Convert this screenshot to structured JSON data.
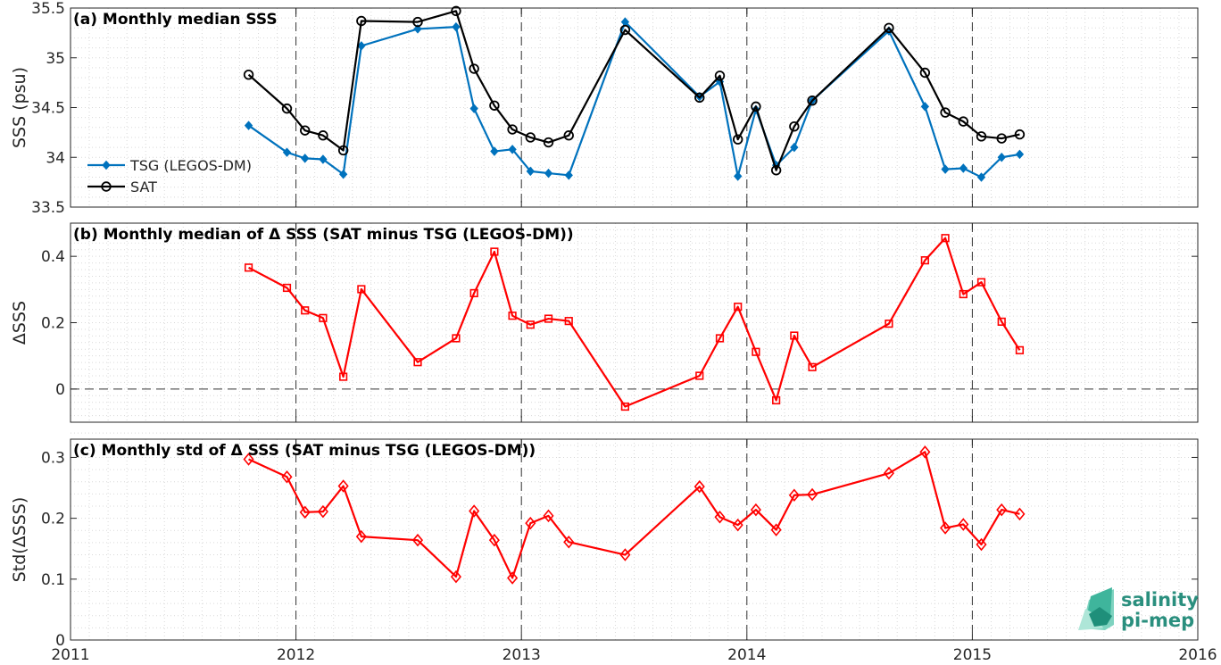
{
  "colors": {
    "tsg": "#0072BD",
    "sat": "#000000",
    "delta": "#FF0000",
    "grid": "#d9d9d9",
    "axis": "#262626",
    "logo": "#2a8f7e"
  },
  "logo": {
    "line1": "salinity",
    "line2": "pi-mep"
  },
  "chart_data": [
    {
      "type": "line",
      "title": "(a) Monthly median SSS",
      "xlabel": "",
      "ylabel": "SSS (psu)",
      "xlim": [
        2011,
        2016
      ],
      "ylim": [
        33.5,
        35.5
      ],
      "x_ticks": [
        "2011",
        "2012",
        "2013",
        "2014",
        "2015",
        "2016"
      ],
      "y_ticks": [
        "33.5",
        "34",
        "34.5",
        "35",
        "35.5"
      ],
      "grid": "minor dotted, yearly dashed",
      "legend": "left",
      "series": [
        {
          "name": "TSG (LEGOS-DM)",
          "marker": "diamond",
          "x": [
            2011.79,
            2011.96,
            2012.04,
            2012.12,
            2012.21,
            2012.29,
            2012.54,
            2012.71,
            2012.79,
            2012.88,
            2012.96,
            2013.04,
            2013.12,
            2013.21,
            2013.46,
            2013.79,
            2013.88,
            2013.96,
            2014.04,
            2014.13,
            2014.21,
            2014.29,
            2014.63,
            2014.79,
            2014.88,
            2014.96,
            2015.04,
            2015.13,
            2015.21
          ],
          "y": [
            34.32,
            34.05,
            33.99,
            33.98,
            33.83,
            35.12,
            35.29,
            35.31,
            34.49,
            34.06,
            34.08,
            33.86,
            33.84,
            33.82,
            35.36,
            34.61,
            34.76,
            33.81,
            34.48,
            33.92,
            34.1,
            34.57,
            35.27,
            34.51,
            33.88,
            33.89,
            33.8,
            34.0,
            34.03
          ]
        },
        {
          "name": "SAT",
          "marker": "circle",
          "x": [
            2011.79,
            2011.96,
            2012.04,
            2012.12,
            2012.21,
            2012.29,
            2012.54,
            2012.71,
            2012.79,
            2012.88,
            2012.96,
            2013.04,
            2013.12,
            2013.21,
            2013.46,
            2013.79,
            2013.88,
            2013.96,
            2014.04,
            2014.13,
            2014.21,
            2014.29,
            2014.63,
            2014.79,
            2014.88,
            2014.96,
            2015.04,
            2015.13,
            2015.21
          ],
          "y": [
            34.83,
            34.49,
            34.27,
            34.22,
            34.07,
            35.37,
            35.36,
            35.47,
            34.89,
            34.52,
            34.28,
            34.2,
            34.15,
            34.22,
            35.28,
            34.6,
            34.82,
            34.18,
            34.51,
            33.87,
            34.31,
            34.57,
            35.3,
            34.85,
            34.45,
            34.36,
            34.21,
            34.19,
            34.23
          ]
        }
      ]
    },
    {
      "type": "line",
      "title": "(b) Monthly median of Δ SSS (SAT minus TSG (LEGOS-DM))",
      "xlabel": "",
      "ylabel": "ΔSSS",
      "xlim": [
        2011,
        2016
      ],
      "ylim": [
        -0.1,
        0.5
      ],
      "x_ticks": [],
      "y_ticks": [
        "0",
        "0.2",
        "0.4"
      ],
      "grid": "minor dotted, yearly dashed, zero dashed",
      "series": [
        {
          "marker": "square",
          "x": [
            2011.79,
            2011.96,
            2012.04,
            2012.12,
            2012.21,
            2012.29,
            2012.54,
            2012.71,
            2012.79,
            2012.88,
            2012.96,
            2013.04,
            2013.12,
            2013.21,
            2013.46,
            2013.79,
            2013.88,
            2013.96,
            2014.04,
            2014.13,
            2014.21,
            2014.29,
            2014.63,
            2014.79,
            2014.88,
            2014.96,
            2015.04,
            2015.13,
            2015.21
          ],
          "y": [
            0.366,
            0.305,
            0.237,
            0.214,
            0.037,
            0.301,
            0.081,
            0.153,
            0.289,
            0.414,
            0.221,
            0.194,
            0.212,
            0.205,
            -0.053,
            0.04,
            0.153,
            0.248,
            0.112,
            -0.034,
            0.161,
            0.066,
            0.197,
            0.388,
            0.455,
            0.286,
            0.322,
            0.203,
            0.117
          ]
        }
      ]
    },
    {
      "type": "line",
      "title": "(c) Monthly std of Δ SSS (SAT minus TSG (LEGOS-DM))",
      "xlabel": "",
      "ylabel": "Std(ΔSSS)",
      "xlim": [
        2011,
        2016
      ],
      "ylim": [
        0,
        0.33
      ],
      "x_ticks": [
        "2011",
        "2012",
        "2013",
        "2014",
        "2015",
        "2016"
      ],
      "y_ticks": [
        "0",
        "0.1",
        "0.2",
        "0.3"
      ],
      "grid": "minor dotted, yearly dashed",
      "series": [
        {
          "marker": "diamond",
          "x": [
            2011.79,
            2011.96,
            2012.04,
            2012.12,
            2012.21,
            2012.29,
            2012.54,
            2012.71,
            2012.79,
            2012.88,
            2012.96,
            2013.04,
            2013.12,
            2013.21,
            2013.46,
            2013.79,
            2013.88,
            2013.96,
            2014.04,
            2014.13,
            2014.21,
            2014.29,
            2014.63,
            2014.79,
            2014.88,
            2014.96,
            2015.04,
            2015.13,
            2015.21
          ],
          "y": [
            0.297,
            0.268,
            0.21,
            0.211,
            0.253,
            0.17,
            0.164,
            0.104,
            0.212,
            0.164,
            0.102,
            0.192,
            0.204,
            0.161,
            0.14,
            0.252,
            0.202,
            0.189,
            0.214,
            0.181,
            0.238,
            0.239,
            0.274,
            0.309,
            0.184,
            0.19,
            0.157,
            0.214,
            0.207
          ]
        }
      ]
    }
  ]
}
